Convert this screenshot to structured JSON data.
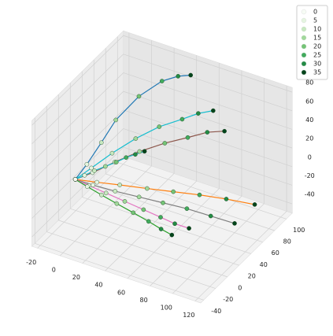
{
  "chart_data": {
    "type": "line3d",
    "xlim": [
      -25,
      125
    ],
    "ylim": [
      -45,
      110
    ],
    "zlim": [
      -50,
      85
    ],
    "xticks": [
      -20,
      0,
      20,
      40,
      60,
      80,
      100,
      120
    ],
    "yticks": [
      -40,
      -20,
      0,
      20,
      40,
      60,
      80,
      100
    ],
    "zticks": [
      -40,
      -20,
      0,
      20,
      40,
      60,
      80
    ],
    "grid": true,
    "legend": {
      "position": "upper right",
      "labels": [
        0,
        5,
        10,
        15,
        20,
        25,
        30,
        35
      ],
      "colors": [
        "#f7fcf5",
        "#e5f5e0",
        "#c7e9c0",
        "#a1d99b",
        "#74c476",
        "#41ab5d",
        "#238b45",
        "#00441b"
      ]
    },
    "series": [
      {
        "color": "#1f77b4",
        "x": [
          -10,
          -5,
          0,
          5,
          15,
          25,
          33,
          40
        ],
        "y": [
          0,
          10,
          25,
          40,
          60,
          80,
          92,
          100
        ],
        "z": [
          0,
          12,
          28,
          45,
          62,
          70,
          71,
          70
        ]
      },
      {
        "color": "#17becf",
        "x": [
          -10,
          -2,
          8,
          20,
          32,
          44,
          52,
          60
        ],
        "y": [
          0,
          12,
          28,
          45,
          62,
          78,
          90,
          100
        ],
        "z": [
          0,
          8,
          18,
          28,
          35,
          38,
          40,
          40
        ]
      },
      {
        "color": "#8c564b",
        "x": [
          -10,
          0,
          12,
          25,
          38,
          50,
          60,
          70
        ],
        "y": [
          0,
          10,
          25,
          42,
          60,
          76,
          90,
          100
        ],
        "z": [
          0,
          5,
          12,
          18,
          21,
          22,
          23,
          22
        ]
      },
      {
        "color": "#ff7f0e",
        "x": [
          -10,
          5,
          20,
          38,
          55,
          72,
          90,
          110
        ],
        "y": [
          0,
          8,
          18,
          30,
          42,
          54,
          65,
          75
        ],
        "z": [
          0,
          -2,
          -5,
          -9,
          -13,
          -17,
          -21,
          -25
        ]
      },
      {
        "color": "#7f7f7f",
        "x": [
          -10,
          3,
          18,
          34,
          50,
          66,
          83,
          100
        ],
        "y": [
          0,
          5,
          14,
          24,
          34,
          44,
          52,
          60
        ],
        "z": [
          0,
          -4,
          -10,
          -16,
          -22,
          -28,
          -34,
          -40
        ]
      },
      {
        "color": "#e377c2",
        "x": [
          -10,
          0,
          12,
          25,
          38,
          50,
          60,
          70
        ],
        "y": [
          0,
          4,
          10,
          17,
          24,
          30,
          35,
          40
        ],
        "z": [
          0,
          -5,
          -12,
          -20,
          -28,
          -35,
          -41,
          -45
        ]
      },
      {
        "color": "#2ca02c",
        "x": [
          -10,
          -1,
          9,
          20,
          32,
          43,
          52,
          60
        ],
        "y": [
          0,
          3,
          8,
          13,
          18,
          23,
          27,
          30
        ],
        "z": [
          0,
          -6,
          -14,
          -22,
          -30,
          -38,
          -45,
          -50
        ]
      },
      {
        "color": "#17becf",
        "x": [
          -10,
          -6,
          -2,
          3,
          8,
          12,
          16,
          20
        ],
        "y": [
          0,
          8,
          17,
          26,
          35,
          44,
          52,
          60
        ],
        "z": [
          0,
          1,
          2,
          3,
          4,
          5,
          5,
          5
        ]
      }
    ]
  }
}
